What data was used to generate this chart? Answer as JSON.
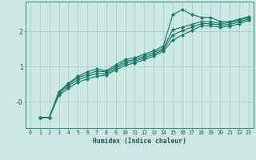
{
  "xlabel": "Humidex (Indice chaleur)",
  "bg_color": "#cde8e2",
  "grid_color": "#a8cfc8",
  "line_color": "#1a7a6a",
  "xlim": [
    -0.5,
    23.5
  ],
  "ylim": [
    -0.75,
    2.85
  ],
  "yticks": [
    0.0,
    1.0,
    2.0
  ],
  "ytick_labels": [
    "-0",
    "1",
    "2"
  ],
  "xtick_labels": [
    "0",
    "1",
    "2",
    "3",
    "4",
    "5",
    "6",
    "7",
    "8",
    "9",
    "10",
    "11",
    "12",
    "13",
    "14",
    "15",
    "16",
    "17",
    "18",
    "19",
    "20",
    "21",
    "22",
    "23"
  ],
  "series": [
    [
      null,
      -0.45,
      -0.45,
      0.28,
      0.52,
      0.72,
      0.85,
      0.93,
      0.88,
      1.05,
      1.2,
      1.25,
      1.35,
      1.45,
      1.58,
      2.48,
      2.62,
      2.48,
      2.4,
      2.4,
      2.28,
      2.28,
      2.35,
      2.42
    ],
    [
      null,
      -0.45,
      -0.45,
      0.27,
      0.5,
      0.68,
      0.78,
      0.87,
      0.85,
      1.0,
      1.15,
      1.2,
      1.3,
      1.4,
      1.52,
      2.05,
      2.12,
      2.2,
      2.28,
      2.28,
      2.22,
      2.25,
      2.32,
      2.4
    ],
    [
      null,
      -0.45,
      -0.45,
      0.24,
      0.45,
      0.62,
      0.72,
      0.8,
      0.8,
      0.95,
      1.1,
      1.15,
      1.25,
      1.35,
      1.48,
      1.9,
      2.02,
      2.12,
      2.22,
      2.22,
      2.18,
      2.2,
      2.27,
      2.36
    ],
    [
      null,
      -0.45,
      -0.45,
      0.18,
      0.38,
      0.55,
      0.65,
      0.72,
      0.76,
      0.9,
      1.04,
      1.1,
      1.2,
      1.3,
      1.44,
      1.75,
      1.9,
      2.02,
      2.16,
      2.16,
      2.12,
      2.15,
      2.22,
      2.32
    ]
  ]
}
